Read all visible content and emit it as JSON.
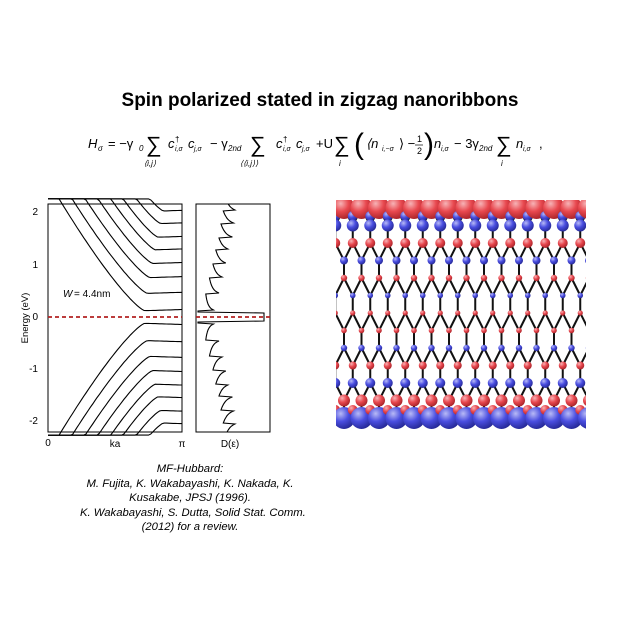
{
  "slide": {
    "title": "Spin polarized stated in zigzag nanoribbons"
  },
  "equation": {
    "lhs": "H",
    "lhs_sub": "σ",
    "term1_coef": "= −γ",
    "term1_coef_sub": "0",
    "term1_sum_index": "⟨i,j⟩",
    "term1_operator": "c",
    "term2_coef": "− γ",
    "term2_coef_sub": "2nd",
    "term2_sum_index": "⟨⟨i,j⟩⟩",
    "term3_coef": "+U",
    "term3_sum_index": "i",
    "term3_density": "⟨n",
    "term3_density_sub": "i,−σ",
    "term3_half_num": "1",
    "term3_half_den": "2",
    "term3_n": "n",
    "term3_n_sub": "i,σ",
    "term4_coef": "− 3γ",
    "term4_coef_sub": "2nd",
    "term4_sum_index": "i",
    "term4_n": "n",
    "term4_n_sub": "i,σ",
    "trailing": ","
  },
  "band_plot": {
    "ylabel": "Energy (eV)",
    "xlabel": "ka",
    "x_tick_left": "0",
    "x_tick_right": "π",
    "y_ticks": [
      "2",
      "1",
      "0",
      "-1",
      "-2"
    ],
    "width_label_symbol": "W",
    "width_label_value": "= 4.4nm",
    "fermi_line_color": "#b22222"
  },
  "dos_plot": {
    "xlabel": "D(ε)"
  },
  "lattice": {
    "spin_up_color": "#e8484f",
    "spin_down_color": "#4a4ee0",
    "bond_color": "#111111"
  },
  "caption": {
    "lines": [
      "MF-Hubbard:",
      "M. Fujita, K. Wakabayashi, K. Nakada, K.",
      "Kusakabe, JPSJ (1996).",
      "K. Wakabayashi, S. Dutta, Solid Stat. Comm.",
      "(2012) for a review."
    ]
  }
}
